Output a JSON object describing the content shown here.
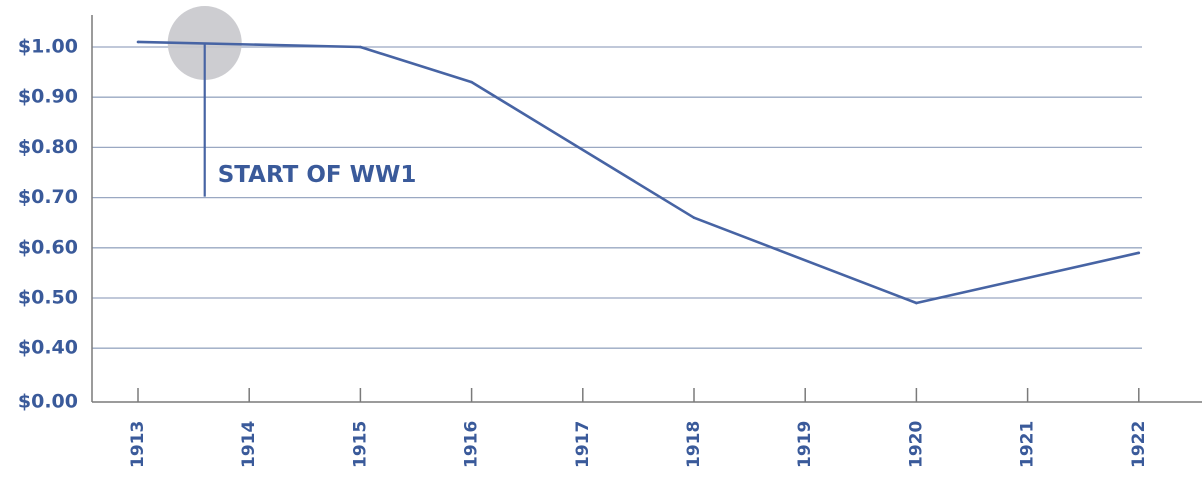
{
  "chart_data": {
    "type": "line",
    "categories": [
      "1913",
      "1914",
      "1915",
      "1916",
      "1917",
      "1918",
      "1919",
      "1920",
      "1921",
      "1922"
    ],
    "series": [
      {
        "x": [
          1913,
          1915,
          1916,
          1918,
          1920,
          1922
        ],
        "values": [
          1.01,
          1.0,
          0.93,
          0.66,
          0.49,
          0.59
        ]
      }
    ],
    "y_ticks": [
      {
        "value": 1.0,
        "label": "$1.00"
      },
      {
        "value": 0.9,
        "label": "$0.90"
      },
      {
        "value": 0.8,
        "label": "$0.80"
      },
      {
        "value": 0.7,
        "label": "$0.70"
      },
      {
        "value": 0.6,
        "label": "$0.60"
      },
      {
        "value": 0.5,
        "label": "$0.50"
      },
      {
        "value": 0.4,
        "label": "$0.40"
      },
      {
        "value": 0.0,
        "label": "$0.00"
      }
    ],
    "y_axis_break": "between $0.40 and $0.00",
    "xlim": [
      1913,
      1922
    ],
    "grid": "horizontal",
    "annotations": [
      {
        "text": "START OF WW1",
        "x": 1913.6,
        "marker": "circle"
      }
    ],
    "colors": {
      "line": "#4764a4",
      "grid": "#9aa8c2",
      "text": "#3a5a9a",
      "axis": "#7a7a7a",
      "marker": "#c8c8cc"
    },
    "title": "",
    "xlabel": "",
    "ylabel": ""
  }
}
